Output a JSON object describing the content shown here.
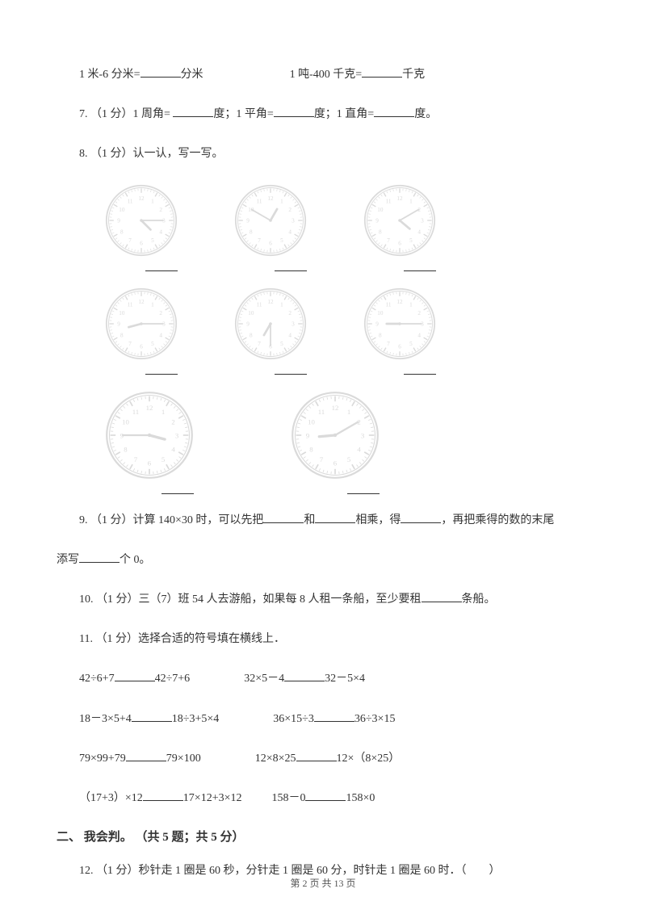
{
  "q6": {
    "left_pre": "1 米-6 分米=",
    "left_post": "分米",
    "right_pre": "1 吨-400 千克=",
    "right_post": "千克"
  },
  "q7": {
    "prefix": "7.  （1 分）1 周角= ",
    "mid1": "度；1 平角=",
    "mid2": "度；1 直角=",
    "end": "度。"
  },
  "q8": {
    "prefix": "8.  （1 分）认一认，写一写。"
  },
  "q9": {
    "a": "9.  （1 分）计算 140×30 时，可以先把",
    "b": "和",
    "c": "相乘，得",
    "d": "，再把乘得的数的末尾",
    "e": "添写",
    "f": "个 0。"
  },
  "q10": {
    "a": "10.  （1 分）三（7）班 54 人去游船，如果每 8 人租一条船，至少要租",
    "b": "条船。"
  },
  "q11": {
    "a": "11.  （1 分）选择合适的符号填在横线上．"
  },
  "q11r1": {
    "l1": "42÷6+7",
    "l2": "42÷7+6",
    "r1": "32×5－4",
    "r2": "32－5×4"
  },
  "q11r2": {
    "l1": "18－3×5+4",
    "l2": "18÷3+5×4",
    "r1": "36×15÷3",
    "r2": "36÷3×15"
  },
  "q11r3": {
    "l1": "79×99+79",
    "l2": "79×100",
    "r1": "12×8×25",
    "r2": "12×（8×25）"
  },
  "q11r4": {
    "l1": "（17+3）×12",
    "l2": "17×12+3×12",
    "r1": "158－0",
    "r2": "158×0"
  },
  "section2": "二、 我会判。 （共 5 题；共 5 分）",
  "q12": "12.  （1 分）秒针走 1 圈是 60 秒，分针走 1 圈是 60 分，时针走 1 圈是 60 时．（　　）",
  "footer": "第 2 页 共 13 页",
  "clocks": {
    "row1": [
      {
        "hour_angle": 135,
        "min_angle": 90
      },
      {
        "hour_angle": 30,
        "min_angle": 300
      },
      {
        "hour_angle": 130,
        "min_angle": 60
      }
    ],
    "row2": [
      {
        "hour_angle": 255,
        "min_angle": 90
      },
      {
        "hour_angle": 210,
        "min_angle": 180
      },
      {
        "hour_angle": 270,
        "min_angle": 90
      }
    ],
    "row3": [
      {
        "hour_angle": 105,
        "min_angle": 270
      },
      {
        "hour_angle": 265,
        "min_angle": 60
      }
    ]
  },
  "clock_style": {
    "stroke": "#bdbdbd",
    "face": "#ffffff",
    "tick": "#bdbdbd",
    "num_color": "#bdbdbd",
    "hand": "#bdbdbd"
  }
}
